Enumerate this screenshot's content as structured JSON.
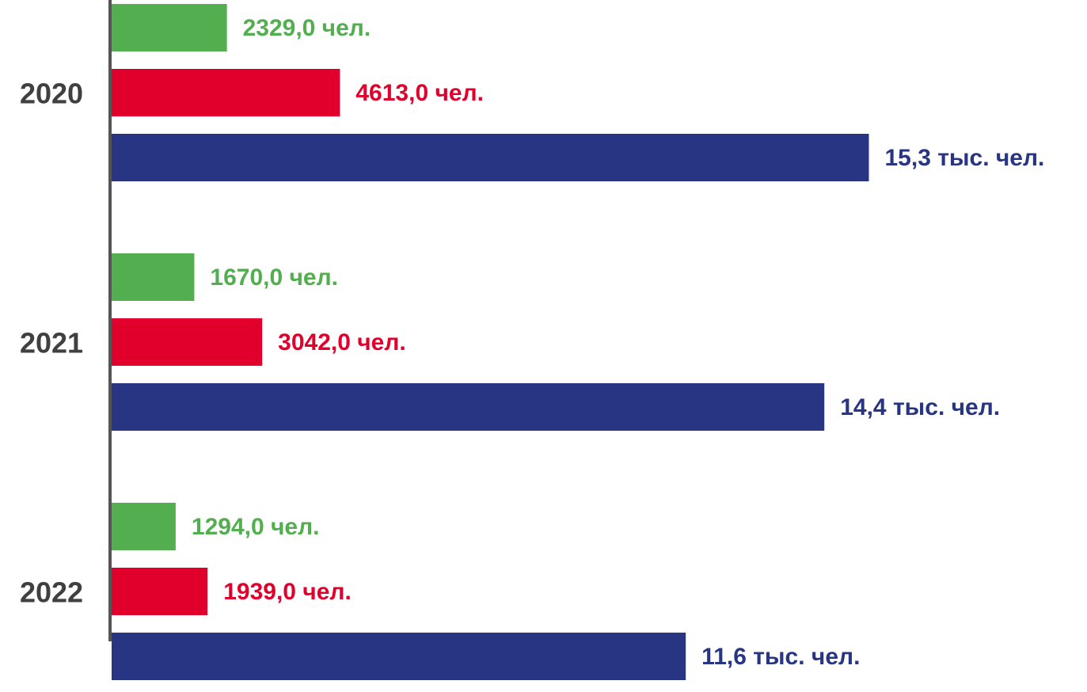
{
  "chart_data": {
    "type": "hbar",
    "categories": [
      "2020",
      "2021",
      "2022"
    ],
    "series": [
      {
        "color": "#52ae4f",
        "values": [
          2329,
          1670,
          1294
        ],
        "value_labels": [
          "2329,0 чел.",
          "1670,0 чел.",
          "1294,0 чел."
        ]
      },
      {
        "color": "#e1002b",
        "values": [
          4613,
          3042,
          1939
        ],
        "value_labels": [
          "4613,0 чел.",
          "3042,0 чел.",
          "1939,0 чел."
        ]
      },
      {
        "color": "#283582",
        "values": [
          15300,
          14400,
          11600
        ],
        "value_labels": [
          "15,3 тыс. чел.",
          "14,4 тыс. чел.",
          "11,6 тыс. чел."
        ]
      }
    ],
    "xlim": [
      0,
      15500
    ]
  }
}
